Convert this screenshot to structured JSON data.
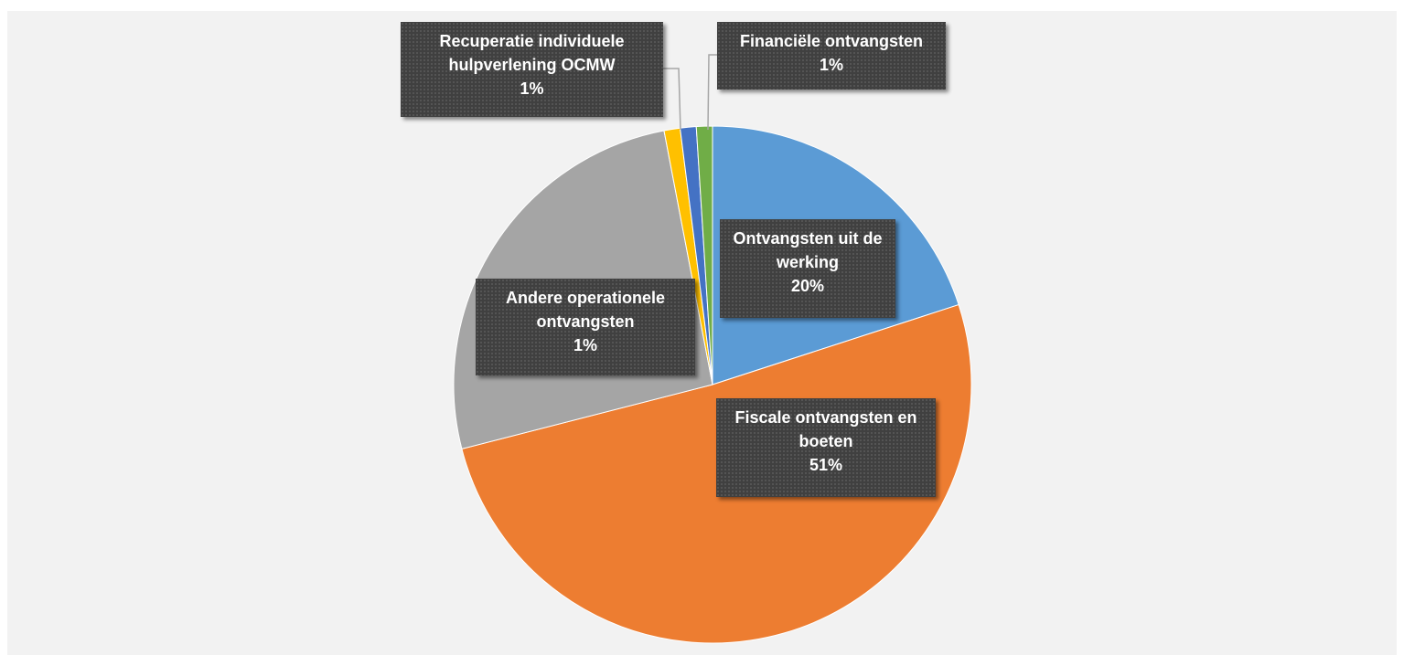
{
  "chart_data": {
    "type": "pie",
    "categories": [
      "Ontvangsten uit de werking",
      "Fiscale ontvangsten en boeten",
      null,
      "Andere operationele ontvangsten",
      "Recuperatie individuele hulpverlening OCMW",
      "Financiële ontvangsten"
    ],
    "values": [
      20,
      51,
      26,
      1,
      1,
      1
    ],
    "value_labels": [
      "20%",
      "51%",
      null,
      "1%",
      "1%",
      "1%"
    ],
    "colors": [
      "#5b9bd5",
      "#ed7d31",
      "#a5a5a5",
      "#ffc000",
      "#4472c4",
      "#70ad47"
    ]
  }
}
